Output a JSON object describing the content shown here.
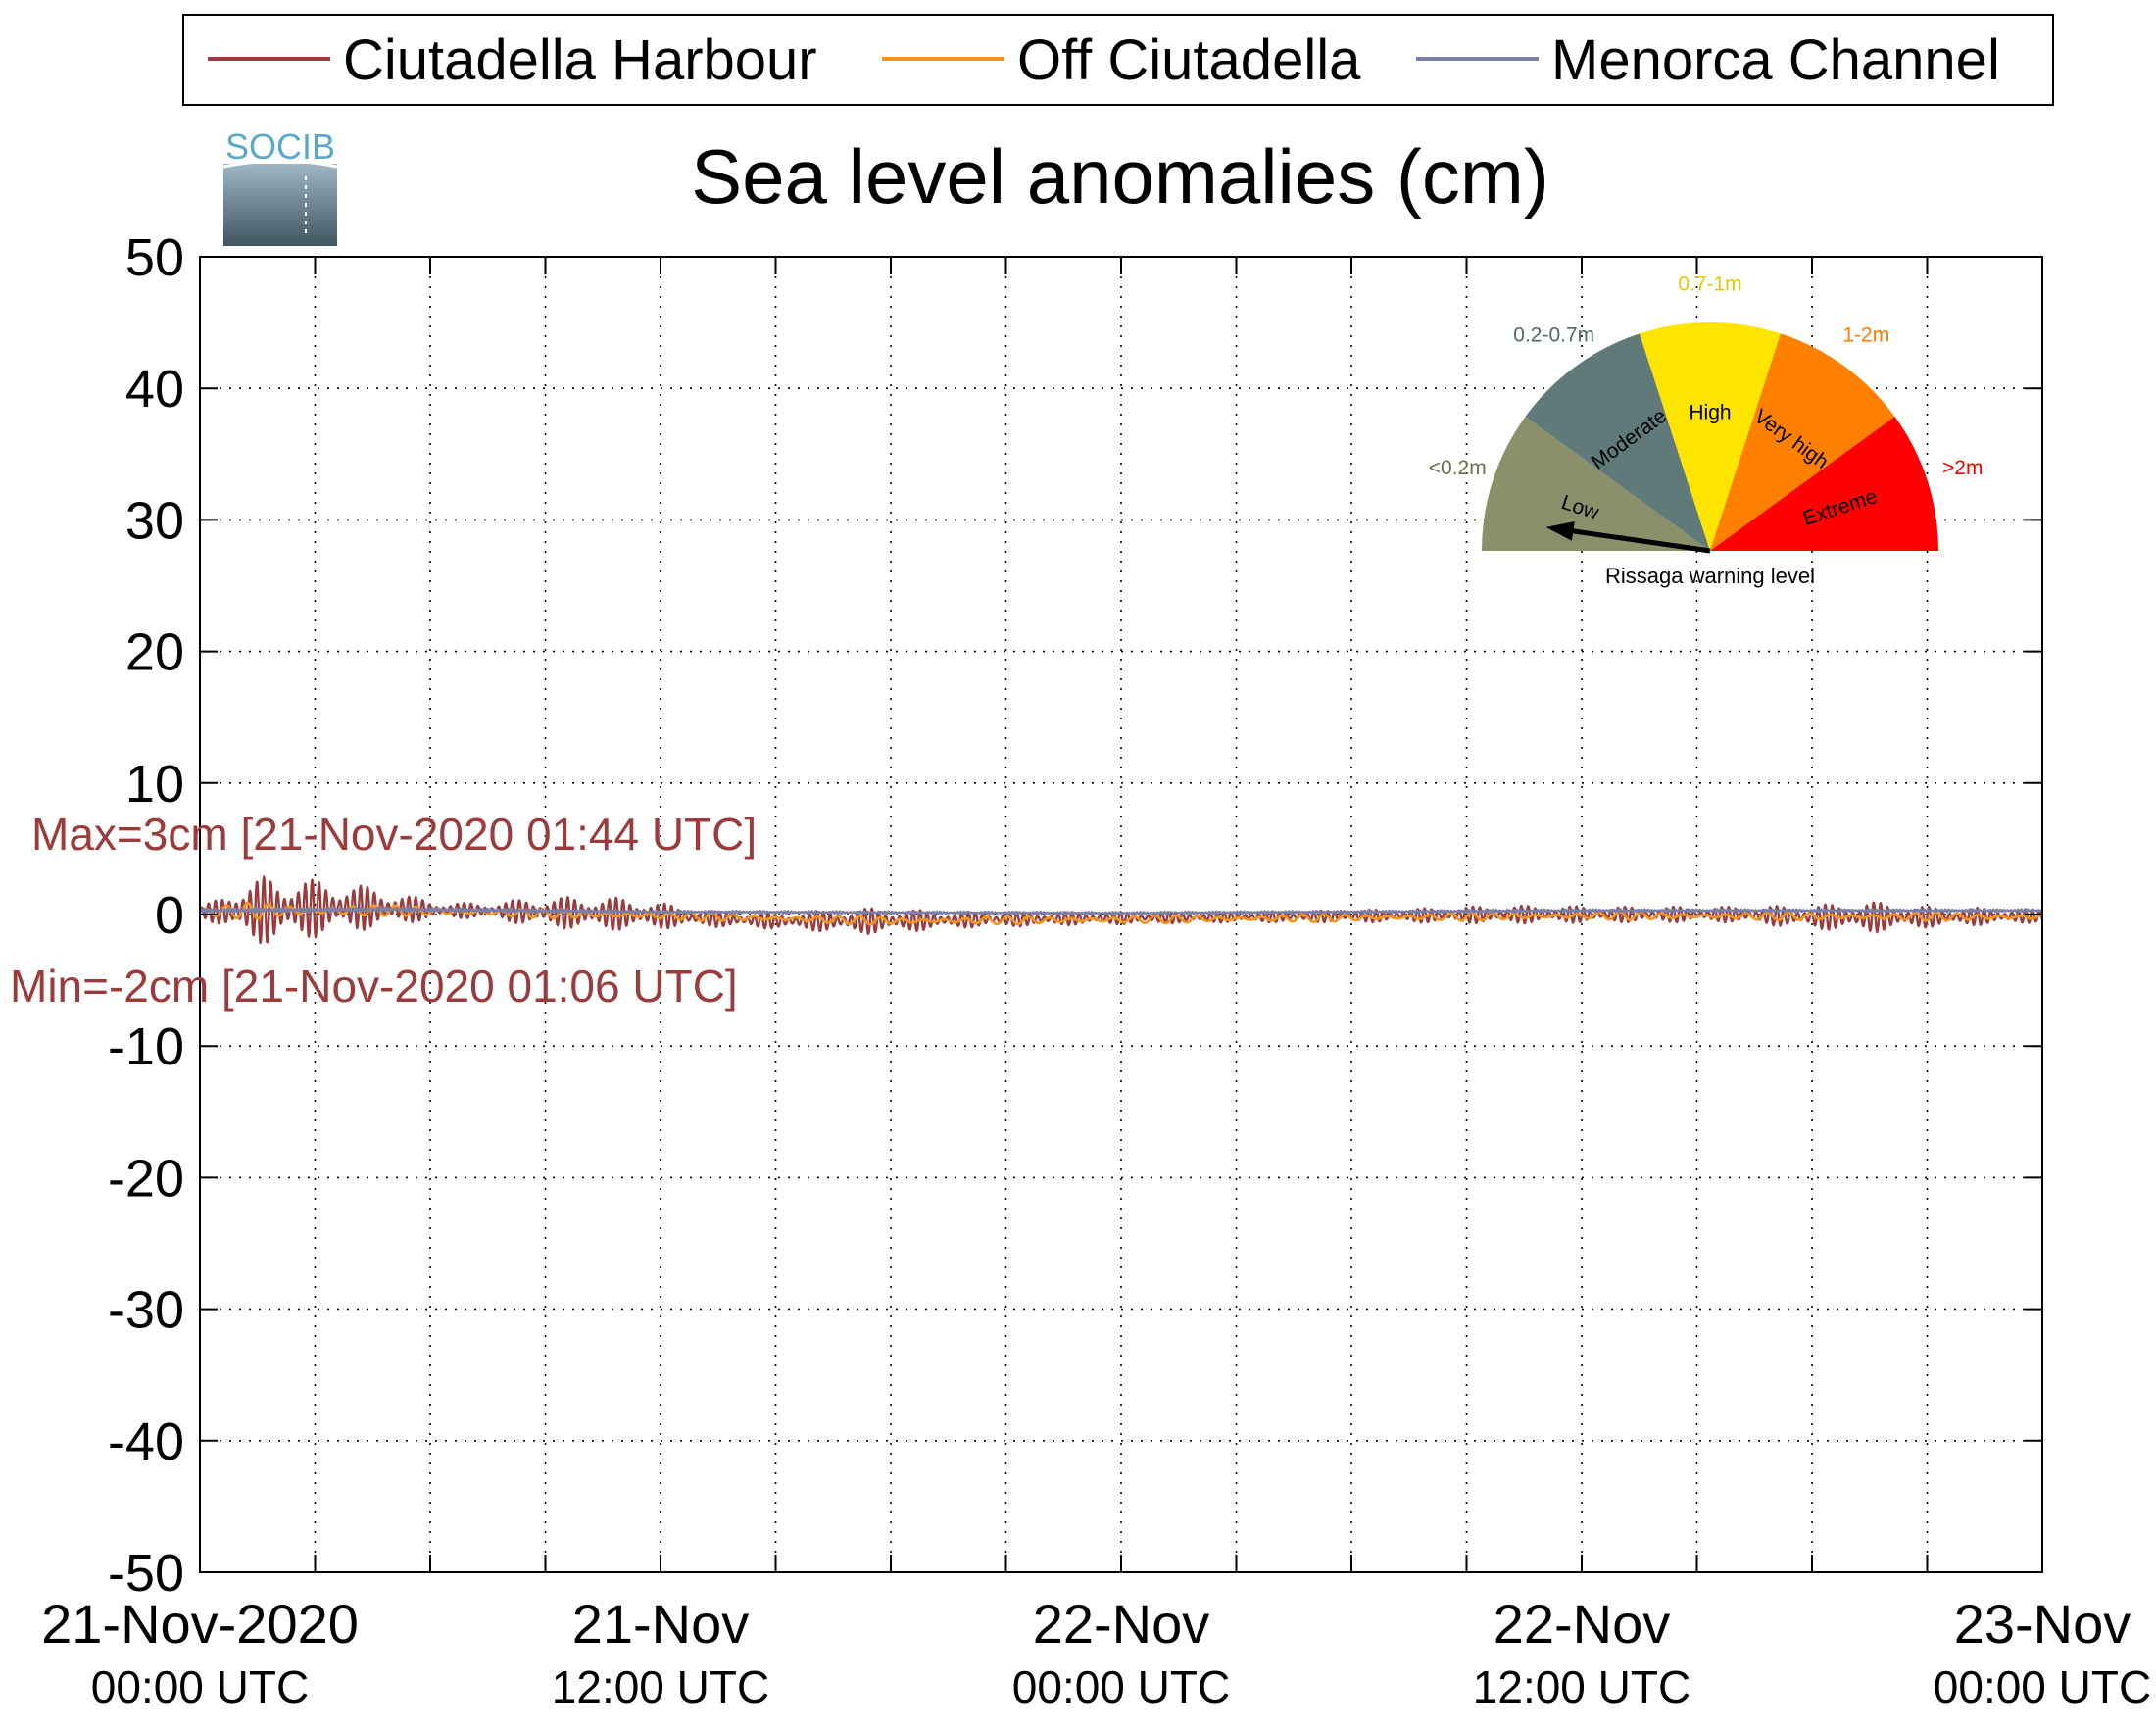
{
  "legend": {
    "items": [
      {
        "label": "Ciutadella Harbour",
        "color": "#9b3b3b"
      },
      {
        "label": "Off Ciutadella",
        "color": "#f29422"
      },
      {
        "label": "Menorca Channel",
        "color": "#7b7fa6"
      }
    ]
  },
  "logo": {
    "text": "SOCIB"
  },
  "annotations": {
    "max": "Max=3cm [21-Nov-2020 01:44 UTC]",
    "min": "Min=-2cm [21-Nov-2020 01:06 UTC]"
  },
  "gauge": {
    "caption": "Rissaga warning level",
    "needle_level": "Low",
    "segments": [
      {
        "name": "Low",
        "range": "<0.2m",
        "color": "#8b8f6a",
        "text_color": "#6b6f50"
      },
      {
        "name": "Moderate",
        "range": "0.2-0.7m",
        "color": "#5f7a78",
        "text_color": "#4f6a68"
      },
      {
        "name": "High",
        "range": "0.7-1m",
        "color": "#ffe400",
        "text_color": "#e6c800"
      },
      {
        "name": "Very high",
        "range": "1-2m",
        "color": "#ff8000",
        "text_color": "#ff7a00"
      },
      {
        "name": "Extreme",
        "range": ">2m",
        "color": "#ff0000",
        "text_color": "#ee0000"
      }
    ]
  },
  "chart_data": {
    "type": "line",
    "title": "Sea level anomalies (cm)",
    "xlabel": "",
    "ylabel": "",
    "ylim": [
      -50,
      50
    ],
    "yticks": [
      -50,
      -40,
      -30,
      -20,
      -10,
      0,
      10,
      20,
      30,
      40,
      50
    ],
    "xlim_hours": [
      0,
      48
    ],
    "x_minor_step_hours": 3,
    "grid": true,
    "legend_position": "top",
    "xticks": [
      {
        "hour": 0,
        "date": "21-Nov-2020",
        "time": "00:00 UTC"
      },
      {
        "hour": 12,
        "date": "21-Nov",
        "time": "12:00 UTC"
      },
      {
        "hour": 24,
        "date": "22-Nov",
        "time": "00:00 UTC"
      },
      {
        "hour": 36,
        "date": "22-Nov",
        "time": "12:00 UTC"
      },
      {
        "hour": 48,
        "date": "23-Nov",
        "time": "00:00 UTC"
      }
    ],
    "series": [
      {
        "name": "Ciutadella Harbour",
        "color": "#9b3b3b",
        "envelope": [
          {
            "hour": 0.0,
            "amp": 0.4,
            "offset": 0.2
          },
          {
            "hour": 0.5,
            "amp": 1.0,
            "offset": 0.2
          },
          {
            "hour": 1.1,
            "amp": 2.2,
            "offset": 0.3
          },
          {
            "hour": 1.7,
            "amp": 2.6,
            "offset": 0.3
          },
          {
            "hour": 2.5,
            "amp": 2.4,
            "offset": 0.4
          },
          {
            "hour": 3.5,
            "amp": 2.0,
            "offset": 0.5
          },
          {
            "hour": 4.5,
            "amp": 1.6,
            "offset": 0.5
          },
          {
            "hour": 5.5,
            "amp": 1.0,
            "offset": 0.4
          },
          {
            "hour": 6.5,
            "amp": 0.6,
            "offset": 0.3
          },
          {
            "hour": 7.5,
            "amp": 0.6,
            "offset": 0.3
          },
          {
            "hour": 8.5,
            "amp": 1.0,
            "offset": 0.2
          },
          {
            "hour": 10.0,
            "amp": 1.3,
            "offset": 0.1
          },
          {
            "hour": 11.5,
            "amp": 1.2,
            "offset": 0.0
          },
          {
            "hour": 13.0,
            "amp": 0.6,
            "offset": -0.3
          },
          {
            "hour": 15.0,
            "amp": 0.6,
            "offset": -0.5
          },
          {
            "hour": 17.5,
            "amp": 1.0,
            "offset": -0.5
          },
          {
            "hour": 20.0,
            "amp": 0.6,
            "offset": -0.4
          },
          {
            "hour": 23.0,
            "amp": 0.5,
            "offset": -0.3
          },
          {
            "hour": 27.0,
            "amp": 0.4,
            "offset": -0.2
          },
          {
            "hour": 31.0,
            "amp": 0.5,
            "offset": -0.1
          },
          {
            "hour": 34.0,
            "amp": 0.7,
            "offset": 0.0
          },
          {
            "hour": 37.0,
            "amp": 0.6,
            "offset": 0.0
          },
          {
            "hour": 40.0,
            "amp": 0.6,
            "offset": 0.0
          },
          {
            "hour": 42.0,
            "amp": 0.9,
            "offset": -0.2
          },
          {
            "hour": 43.5,
            "amp": 1.2,
            "offset": -0.2
          },
          {
            "hour": 45.0,
            "amp": 0.8,
            "offset": -0.2
          },
          {
            "hour": 48.0,
            "amp": 0.5,
            "offset": -0.1
          }
        ]
      },
      {
        "name": "Off Ciutadella",
        "color": "#f29422",
        "envelope": [
          {
            "hour": 0.0,
            "amp": 0.3,
            "offset": 0.2
          },
          {
            "hour": 1.5,
            "amp": 0.7,
            "offset": 0.3
          },
          {
            "hour": 5.0,
            "amp": 0.4,
            "offset": 0.3
          },
          {
            "hour": 12.0,
            "amp": 0.3,
            "offset": -0.1
          },
          {
            "hour": 18.0,
            "amp": 0.3,
            "offset": -0.5
          },
          {
            "hour": 24.0,
            "amp": 0.3,
            "offset": -0.4
          },
          {
            "hour": 36.0,
            "amp": 0.3,
            "offset": -0.1
          },
          {
            "hour": 48.0,
            "amp": 0.3,
            "offset": -0.2
          }
        ]
      },
      {
        "name": "Menorca Channel",
        "color": "#7b7fa6",
        "envelope": [
          {
            "hour": 0.0,
            "amp": 0.15,
            "offset": 0.3
          },
          {
            "hour": 5.0,
            "amp": 0.15,
            "offset": 0.4
          },
          {
            "hour": 12.0,
            "amp": 0.1,
            "offset": 0.2
          },
          {
            "hour": 24.0,
            "amp": 0.1,
            "offset": 0.1
          },
          {
            "hour": 36.0,
            "amp": 0.1,
            "offset": 0.3
          },
          {
            "hour": 48.0,
            "amp": 0.1,
            "offset": 0.3
          }
        ]
      }
    ]
  }
}
